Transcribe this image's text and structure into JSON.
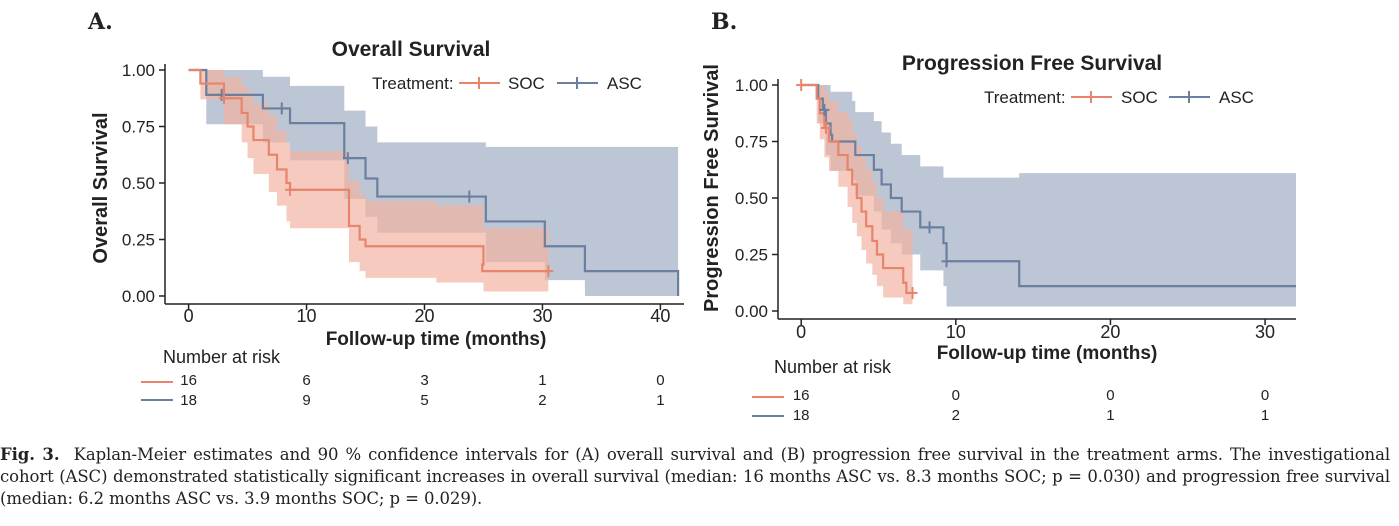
{
  "figure": {
    "caption": {
      "fig_label": "Fig. 3.",
      "text": "Kaplan-Meier estimates and 90 % confidence intervals for (A) overall survival and (B) progression free survival in the treatment arms. The investigational cohort (ASC) demonstrated statistically significant increases in overall survival (median: 16 months ASC vs. 8.3 months SOC; p = 0.030) and progression free survival (median: 6.2 months ASC vs. 3.9 months SOC; p = 0.029)."
    },
    "colors": {
      "soc": "#e8846b",
      "asc": "#6b7fa0",
      "soc_fill": "#f2b3a3",
      "asc_fill": "#b2bccc",
      "overlap_fill": "#c89c9a"
    }
  },
  "chart_data": [
    {
      "type": "line",
      "panel": "A.",
      "title": "Overall Survival",
      "xlabel": "Follow-up time (months)",
      "ylabel": "Overall Survival",
      "xlim": [
        -2,
        42
      ],
      "ylim": [
        0,
        1
      ],
      "x_ticks": [
        0,
        10,
        20,
        30,
        40
      ],
      "y_ticks": [
        "0.00",
        "0.25",
        "0.50",
        "0.75",
        "1.00"
      ],
      "legend_title": "Treatment:",
      "legend_position": "top-right",
      "series": [
        {
          "name": "SOC",
          "steps": [
            [
              0,
              1.0
            ],
            [
              1,
              0.94
            ],
            [
              3,
              0.875
            ],
            [
              4.5,
              0.81
            ],
            [
              5,
              0.75
            ],
            [
              5.5,
              0.69
            ],
            [
              6.8,
              0.625
            ],
            [
              7.5,
              0.56
            ],
            [
              8.3,
              0.5
            ],
            [
              8.6,
              0.47
            ],
            [
              11,
              0.47
            ],
            [
              13.6,
              0.31
            ],
            [
              14.5,
              0.25
            ],
            [
              15,
              0.22
            ],
            [
              21,
              0.22
            ],
            [
              25,
              0.14
            ],
            [
              24.9,
              0.11
            ],
            [
              30.5,
              0.11
            ]
          ],
          "censor_x": [
            3,
            8.6,
            30.5
          ],
          "ci_upper": [
            [
              0,
              1.0
            ],
            [
              1,
              1.0
            ],
            [
              3,
              0.97
            ],
            [
              4.5,
              0.93
            ],
            [
              5,
              0.9
            ],
            [
              5.5,
              0.85
            ],
            [
              6.8,
              0.8
            ],
            [
              7.5,
              0.73
            ],
            [
              8.3,
              0.68
            ],
            [
              8.6,
              0.64
            ],
            [
              11,
              0.64
            ],
            [
              13.6,
              0.51
            ],
            [
              14.5,
              0.45
            ],
            [
              15,
              0.42
            ],
            [
              21,
              0.4
            ],
            [
              25,
              0.3
            ],
            [
              30.5,
              0.3
            ]
          ],
          "ci_lower": [
            [
              0,
              1.0
            ],
            [
              1,
              0.87
            ],
            [
              3,
              0.76
            ],
            [
              4.5,
              0.68
            ],
            [
              5,
              0.61
            ],
            [
              5.5,
              0.54
            ],
            [
              6.8,
              0.46
            ],
            [
              7.5,
              0.4
            ],
            [
              8.3,
              0.33
            ],
            [
              8.6,
              0.3
            ],
            [
              11,
              0.3
            ],
            [
              13.6,
              0.15
            ],
            [
              14.5,
              0.11
            ],
            [
              15,
              0.08
            ],
            [
              21,
              0.06
            ],
            [
              25,
              0.02
            ],
            [
              30.5,
              0.02
            ]
          ]
        },
        {
          "name": "ASC",
          "steps": [
            [
              0,
              1.0
            ],
            [
              1.5,
              0.89
            ],
            [
              6,
              0.89
            ],
            [
              6.3,
              0.83
            ],
            [
              8.3,
              0.83
            ],
            [
              8.6,
              0.765
            ],
            [
              11,
              0.765
            ],
            [
              13.2,
              0.61
            ],
            [
              15,
              0.52
            ],
            [
              16,
              0.44
            ],
            [
              25,
              0.44
            ],
            [
              25.2,
              0.33
            ],
            [
              30,
              0.33
            ],
            [
              30.2,
              0.22
            ],
            [
              33.5,
              0.22
            ],
            [
              33.6,
              0.11
            ],
            [
              41.5,
              0.11
            ],
            [
              41.5,
              0.0
            ]
          ],
          "censor_x": [
            2.8,
            7.9,
            13.5,
            23.8
          ],
          "ci_upper": [
            [
              0,
              1.0
            ],
            [
              1.5,
              1.0
            ],
            [
              6,
              1.0
            ],
            [
              6.3,
              0.97
            ],
            [
              8.6,
              0.93
            ],
            [
              11,
              0.93
            ],
            [
              13.2,
              0.82
            ],
            [
              15,
              0.75
            ],
            [
              16,
              0.68
            ],
            [
              25,
              0.68
            ],
            [
              25.2,
              0.66
            ],
            [
              41.5,
              0.66
            ]
          ],
          "ci_lower": [
            [
              0,
              1.0
            ],
            [
              1.5,
              0.76
            ],
            [
              6,
              0.76
            ],
            [
              6.3,
              0.68
            ],
            [
              8.6,
              0.6
            ],
            [
              11,
              0.6
            ],
            [
              13.2,
              0.43
            ],
            [
              15,
              0.35
            ],
            [
              16,
              0.28
            ],
            [
              25,
              0.28
            ],
            [
              25.2,
              0.15
            ],
            [
              30,
              0.15
            ],
            [
              30.2,
              0.07
            ],
            [
              33.5,
              0.07
            ],
            [
              33.6,
              0.0
            ],
            [
              41.5,
              0.0
            ]
          ]
        }
      ],
      "risk_table": {
        "title": "Number at risk",
        "times": [
          0,
          10,
          20,
          30,
          40
        ],
        "rows": [
          {
            "name": "SOC",
            "counts": [
              "16",
              "6",
              "3",
              "1",
              "0"
            ]
          },
          {
            "name": "ASC",
            "counts": [
              "18",
              "9",
              "5",
              "2",
              "1"
            ]
          }
        ]
      }
    },
    {
      "type": "line",
      "panel": "B.",
      "title": "Progression Free Survival",
      "xlabel": "Follow-up time (months)",
      "ylabel": "Progression Free Survival",
      "xlim": [
        -1.5,
        32
      ],
      "ylim": [
        0,
        1
      ],
      "x_ticks": [
        0,
        10,
        20,
        30
      ],
      "y_ticks": [
        "0.00",
        "0.25",
        "0.50",
        "0.75",
        "1.00"
      ],
      "legend_title": "Treatment:",
      "legend_position": "top-right",
      "series": [
        {
          "name": "SOC",
          "steps": [
            [
              0,
              1.0
            ],
            [
              1,
              0.94
            ],
            [
              1.2,
              0.875
            ],
            [
              1.5,
              0.81
            ],
            [
              1.8,
              0.75
            ],
            [
              2.4,
              0.69
            ],
            [
              3.0,
              0.625
            ],
            [
              3.3,
              0.56
            ],
            [
              3.6,
              0.5
            ],
            [
              3.9,
              0.44
            ],
            [
              4.2,
              0.375
            ],
            [
              4.6,
              0.31
            ],
            [
              4.9,
              0.25
            ],
            [
              5.3,
              0.19
            ],
            [
              6.3,
              0.19
            ],
            [
              6.6,
              0.125
            ],
            [
              6.8,
              0.08
            ],
            [
              7.2,
              0.08
            ]
          ],
          "censor_x": [
            0,
            1.6,
            7.2
          ],
          "ci_upper": [
            [
              0,
              1.0
            ],
            [
              1,
              1.0
            ],
            [
              1.2,
              1.0
            ],
            [
              1.5,
              0.97
            ],
            [
              1.8,
              0.93
            ],
            [
              2.4,
              0.88
            ],
            [
              3.0,
              0.85
            ],
            [
              3.3,
              0.79
            ],
            [
              3.6,
              0.73
            ],
            [
              3.9,
              0.68
            ],
            [
              4.2,
              0.63
            ],
            [
              4.6,
              0.57
            ],
            [
              4.9,
              0.5
            ],
            [
              5.3,
              0.44
            ],
            [
              6.3,
              0.44
            ],
            [
              6.6,
              0.36
            ],
            [
              6.8,
              0.36
            ],
            [
              7.2,
              0.36
            ]
          ],
          "ci_lower": [
            [
              0,
              1.0
            ],
            [
              1,
              0.83
            ],
            [
              1.2,
              0.76
            ],
            [
              1.5,
              0.68
            ],
            [
              1.8,
              0.62
            ],
            [
              2.4,
              0.55
            ],
            [
              3.0,
              0.46
            ],
            [
              3.3,
              0.39
            ],
            [
              3.6,
              0.33
            ],
            [
              3.9,
              0.27
            ],
            [
              4.2,
              0.21
            ],
            [
              4.6,
              0.16
            ],
            [
              4.9,
              0.11
            ],
            [
              5.3,
              0.06
            ],
            [
              6.3,
              0.06
            ],
            [
              6.6,
              0.03
            ],
            [
              6.8,
              0.03
            ],
            [
              7.2,
              0.03
            ]
          ]
        },
        {
          "name": "ASC",
          "steps": [
            [
              0,
              1.0
            ],
            [
              1,
              1.0
            ],
            [
              1.1,
              0.94
            ],
            [
              1.4,
              0.89
            ],
            [
              1.6,
              0.83
            ],
            [
              1.9,
              0.78
            ],
            [
              2.0,
              0.75
            ],
            [
              3.3,
              0.75
            ],
            [
              3.5,
              0.69
            ],
            [
              4.7,
              0.625
            ],
            [
              5.2,
              0.56
            ],
            [
              5.8,
              0.5
            ],
            [
              6.5,
              0.44
            ],
            [
              7.4,
              0.44
            ],
            [
              7.7,
              0.37
            ],
            [
              9.0,
              0.37
            ],
            [
              9.2,
              0.3
            ],
            [
              9.4,
              0.22
            ],
            [
              14.0,
              0.22
            ],
            [
              14.1,
              0.11
            ],
            [
              32,
              0.11
            ]
          ],
          "censor_x": [
            1.5,
            8.3,
            9.4
          ],
          "ci_upper": [
            [
              0,
              1.0
            ],
            [
              1.1,
              1.0
            ],
            [
              1.6,
              1.0
            ],
            [
              1.9,
              0.97
            ],
            [
              3.3,
              0.93
            ],
            [
              3.5,
              0.88
            ],
            [
              4.7,
              0.84
            ],
            [
              5.2,
              0.79
            ],
            [
              5.8,
              0.74
            ],
            [
              6.5,
              0.69
            ],
            [
              7.7,
              0.64
            ],
            [
              9.2,
              0.59
            ],
            [
              14.0,
              0.59
            ],
            [
              14.1,
              0.61
            ],
            [
              32,
              0.61
            ]
          ],
          "ci_lower": [
            [
              0,
              1.0
            ],
            [
              1.1,
              0.83
            ],
            [
              1.6,
              0.69
            ],
            [
              1.9,
              0.62
            ],
            [
              3.3,
              0.58
            ],
            [
              3.5,
              0.51
            ],
            [
              4.7,
              0.44
            ],
            [
              5.2,
              0.36
            ],
            [
              5.8,
              0.3
            ],
            [
              6.5,
              0.25
            ],
            [
              7.7,
              0.18
            ],
            [
              9.2,
              0.11
            ],
            [
              9.4,
              0.02
            ],
            [
              14.1,
              0.02
            ],
            [
              32,
              0.02
            ]
          ]
        }
      ],
      "risk_table": {
        "title": "Number at risk",
        "times": [
          0,
          10,
          20,
          30
        ],
        "rows": [
          {
            "name": "SOC",
            "counts": [
              "16",
              "0",
              "0",
              "0"
            ]
          },
          {
            "name": "ASC",
            "counts": [
              "18",
              "2",
              "1",
              "1"
            ]
          }
        ]
      }
    }
  ]
}
